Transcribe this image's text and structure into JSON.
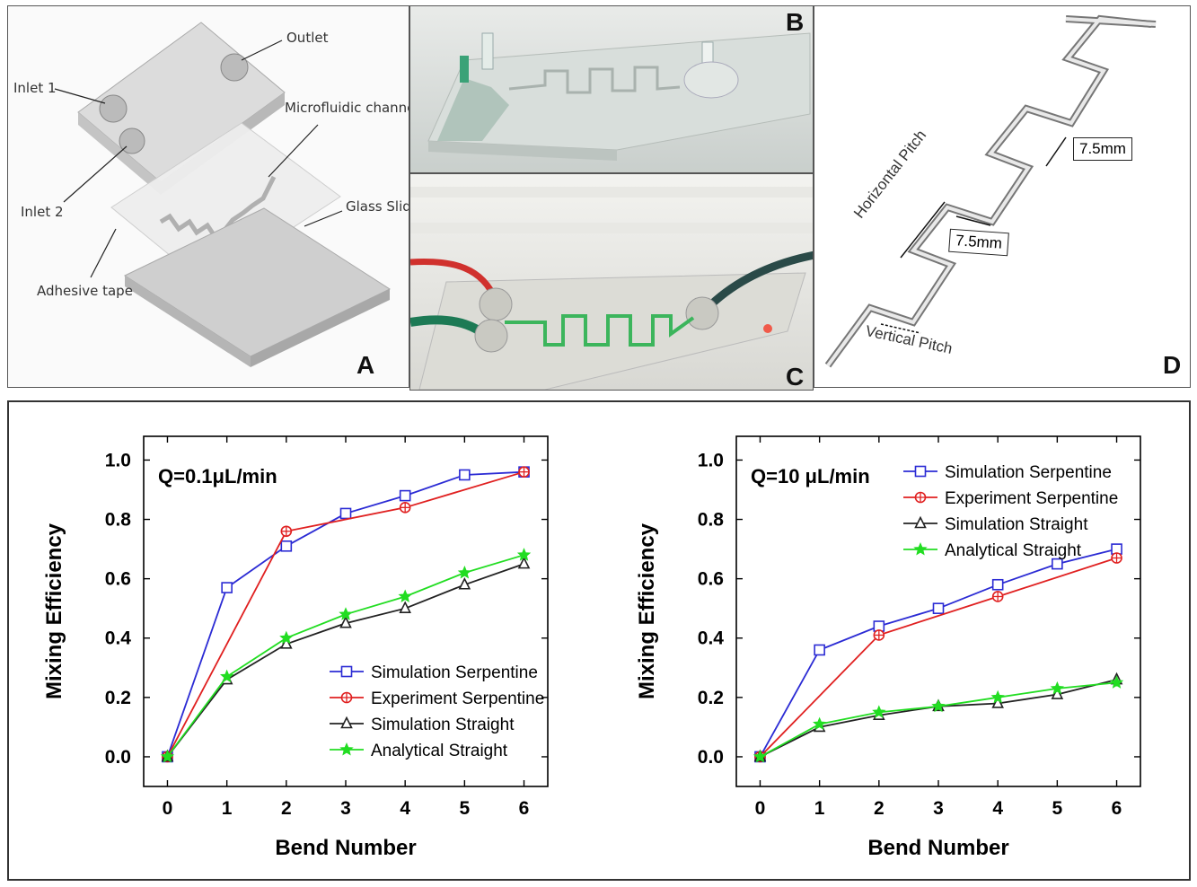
{
  "figure": {
    "panel_a": {
      "letter": "A",
      "labels": {
        "outlet": "Outlet",
        "inlet1": "Inlet 1",
        "inlet2": "Inlet 2",
        "channel": "Microfluidic channel",
        "glass": "Glass Slide",
        "tape": "Adhesive tape"
      }
    },
    "panel_b": {
      "letter": "B"
    },
    "panel_c": {
      "letter": "C"
    },
    "panel_d": {
      "letter": "D",
      "dim_top": "7.5mm",
      "dim_mid": "7.5mm",
      "horizontal_pitch": "Horizontal Pitch",
      "vertical_pitch": "Vertical Pitch"
    }
  },
  "chart_data": [
    {
      "type": "line",
      "annotation": "Q=0.1μL/min",
      "xlabel": "Bend Number",
      "ylabel": "Mixing Efficiency",
      "xlim": [
        -0.4,
        6.4
      ],
      "ylim": [
        -0.1,
        1.08
      ],
      "x_ticks": [
        "0",
        "1",
        "2",
        "3",
        "4",
        "5",
        "6"
      ],
      "y_ticks": [
        "0.0",
        "0.2",
        "0.4",
        "0.6",
        "0.8",
        "1.0"
      ],
      "legend_position": "lower-right",
      "series": [
        {
          "name": "Simulation Serpentine",
          "color": "#2b2bd4",
          "marker": "square",
          "x": [
            0,
            1,
            2,
            3,
            4,
            5,
            6
          ],
          "y": [
            0.0,
            0.57,
            0.71,
            0.82,
            0.88,
            0.95,
            0.96
          ]
        },
        {
          "name": "Experiment Serpentine",
          "color": "#e02020",
          "marker": "circle-plus",
          "x": [
            0,
            2,
            4,
            6
          ],
          "y": [
            0.0,
            0.76,
            0.84,
            0.96
          ]
        },
        {
          "name": "Simulation Straight",
          "color": "#222222",
          "marker": "triangle",
          "x": [
            0,
            1,
            2,
            3,
            4,
            5,
            6
          ],
          "y": [
            0.0,
            0.26,
            0.38,
            0.45,
            0.5,
            0.58,
            0.65
          ]
        },
        {
          "name": "Analytical Straight",
          "color": "#22dd22",
          "marker": "star",
          "x": [
            0,
            1,
            2,
            3,
            4,
            5,
            6
          ],
          "y": [
            0.0,
            0.27,
            0.4,
            0.48,
            0.54,
            0.62,
            0.68
          ]
        }
      ]
    },
    {
      "type": "line",
      "annotation": "Q=10 μL/min",
      "xlabel": "Bend Number",
      "ylabel": "Mixing Efficiency",
      "xlim": [
        -0.4,
        6.4
      ],
      "ylim": [
        -0.1,
        1.08
      ],
      "x_ticks": [
        "0",
        "1",
        "2",
        "3",
        "4",
        "5",
        "6"
      ],
      "y_ticks": [
        "0.0",
        "0.2",
        "0.4",
        "0.6",
        "0.8",
        "1.0"
      ],
      "legend_position": "top-right",
      "series": [
        {
          "name": "Simulation Serpentine",
          "color": "#2b2bd4",
          "marker": "square",
          "x": [
            0,
            1,
            2,
            3,
            4,
            5,
            6
          ],
          "y": [
            0.0,
            0.36,
            0.44,
            0.5,
            0.58,
            0.65,
            0.7
          ]
        },
        {
          "name": "Experiment Serpentine",
          "color": "#e02020",
          "marker": "circle-plus",
          "x": [
            0,
            2,
            4,
            6
          ],
          "y": [
            0.0,
            0.41,
            0.54,
            0.67
          ]
        },
        {
          "name": "Simulation Straight",
          "color": "#222222",
          "marker": "triangle",
          "x": [
            0,
            1,
            2,
            3,
            4,
            5,
            6
          ],
          "y": [
            0.0,
            0.1,
            0.14,
            0.17,
            0.18,
            0.21,
            0.26
          ]
        },
        {
          "name": "Analytical Straight",
          "color": "#22dd22",
          "marker": "star",
          "x": [
            0,
            1,
            2,
            3,
            4,
            5,
            6
          ],
          "y": [
            0.0,
            0.11,
            0.15,
            0.17,
            0.2,
            0.23,
            0.25
          ]
        }
      ]
    }
  ]
}
